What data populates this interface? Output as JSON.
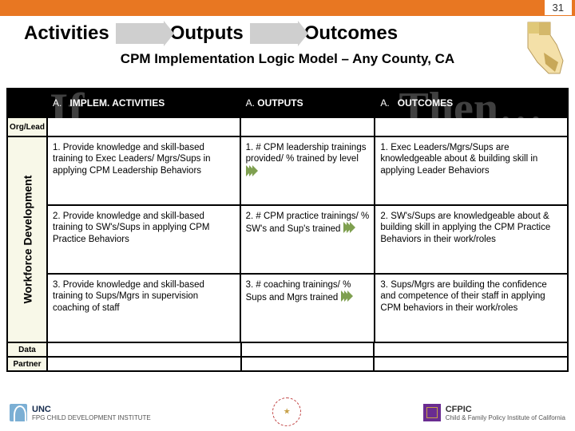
{
  "page_number": "31",
  "flow": {
    "activities": "Activities",
    "outputs": "Outputs",
    "outcomes": "Outcomes"
  },
  "subtitle": "CPM Implementation Logic Model – Any County, CA",
  "ghost": {
    "if": "If…",
    "then": "Then…"
  },
  "header": {
    "colA_prefix": "A.",
    "colA": "IMPLEM. ACTIVITIES",
    "colB_prefix": "A.",
    "colB": "OUTPUTS",
    "colC_prefix": "A.",
    "colC": "OUTCOMES"
  },
  "side": {
    "orglead": "Org/Lead",
    "workforce": "Workforce Development",
    "data": "Data",
    "partner": "Partner"
  },
  "rows": [
    {
      "act_num": "1.",
      "act": "Provide knowledge and skill-based training to Exec Leaders/ Mgrs/Sups in applying CPM Leadership Behaviors",
      "out_num": "1.",
      "out": "# CPM leadership trainings provided/ % trained by level",
      "res_num": "1.",
      "res": "Exec Leaders/Mgrs/Sups are knowledgeable about & building skill in applying Leader Behaviors"
    },
    {
      "act_num": "2.",
      "act": "Provide knowledge and skill-based training to SW's/Sups in applying CPM Practice Behaviors",
      "out_num": "2.",
      "out": "# CPM practice trainings/ % SW's and Sup's trained",
      "res_num": "2.",
      "res": "SW's/Sups are knowledgeable about & building skill in applying the CPM Practice Behaviors in their work/roles"
    },
    {
      "act_num": "3.",
      "act": "Provide knowledge and skill-based training to Sups/Mgrs in supervision coaching of staff",
      "out_num": "3.",
      "out": "# coaching trainings/ % Sups and Mgrs trained",
      "res_num": "3.",
      "res": "Sups/Mgrs are building the confidence and competence of their staff in applying CPM behaviors in their work/roles"
    }
  ],
  "footer": {
    "unc": "UNC",
    "unc_sub": "FPG CHILD DEVELOPMENT INSTITUTE",
    "center_top": "CALIFORNIA CHILD WELFARE",
    "center_bottom": "CORE PRACTICE MODEL",
    "cfpic": "CFPIC",
    "cfpic_sub": "Child & Family Policy Institute of California"
  },
  "colors": {
    "orange": "#e87722",
    "arrow": "#cfcfcf",
    "side_bg": "#f8f8e8",
    "chevron": "#7fa050",
    "unc_blue": "#7bafd4",
    "cfpic_purple": "#6a2c91"
  }
}
